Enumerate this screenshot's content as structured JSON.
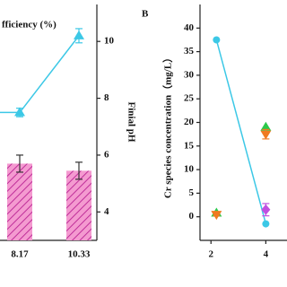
{
  "chart_data": [
    {
      "type": "combo",
      "title": "fficiency (%)",
      "categories": [
        "8.17",
        "10.33"
      ],
      "y2label": "Finial pH",
      "ylim": [
        3,
        11.3
      ],
      "yticks": [
        4,
        6,
        8,
        10
      ],
      "series": [
        {
          "kind": "bar",
          "color": "#f49ad0",
          "values": [
            5.7,
            5.45
          ],
          "errors": [
            0.3,
            0.3
          ]
        },
        {
          "kind": "line",
          "color": "#3cc8e6",
          "values": [
            7.5,
            10.2
          ],
          "errors": [
            0.15,
            0.25
          ]
        }
      ]
    },
    {
      "type": "scatter",
      "panel": "B",
      "ylabel": "Cr species concentration（mg/L）",
      "xlim": [
        1.6,
        5.1
      ],
      "xticks": [
        2,
        4
      ],
      "ylim": [
        -5,
        45
      ],
      "yticks": [
        0,
        5,
        10,
        15,
        20,
        25,
        30,
        35,
        40
      ],
      "series": [
        {
          "marker": "circle",
          "line": true,
          "color": "#3cc8e6",
          "x": [
            2.2,
            4
          ],
          "values": [
            37.5,
            -1.5
          ]
        },
        {
          "marker": "up",
          "color": "#2bc84a",
          "x": [
            2.2,
            4
          ],
          "values": [
            0.8,
            19
          ]
        },
        {
          "marker": "down",
          "color": "#f07a20",
          "x": [
            2.2,
            4
          ],
          "values": [
            0.5,
            17.5
          ],
          "errors": [
            0.3,
            1
          ]
        },
        {
          "marker": "diamond",
          "color": "#c050e0",
          "x": [
            4
          ],
          "values": [
            1.5
          ],
          "errors": [
            1.3
          ]
        }
      ]
    }
  ]
}
